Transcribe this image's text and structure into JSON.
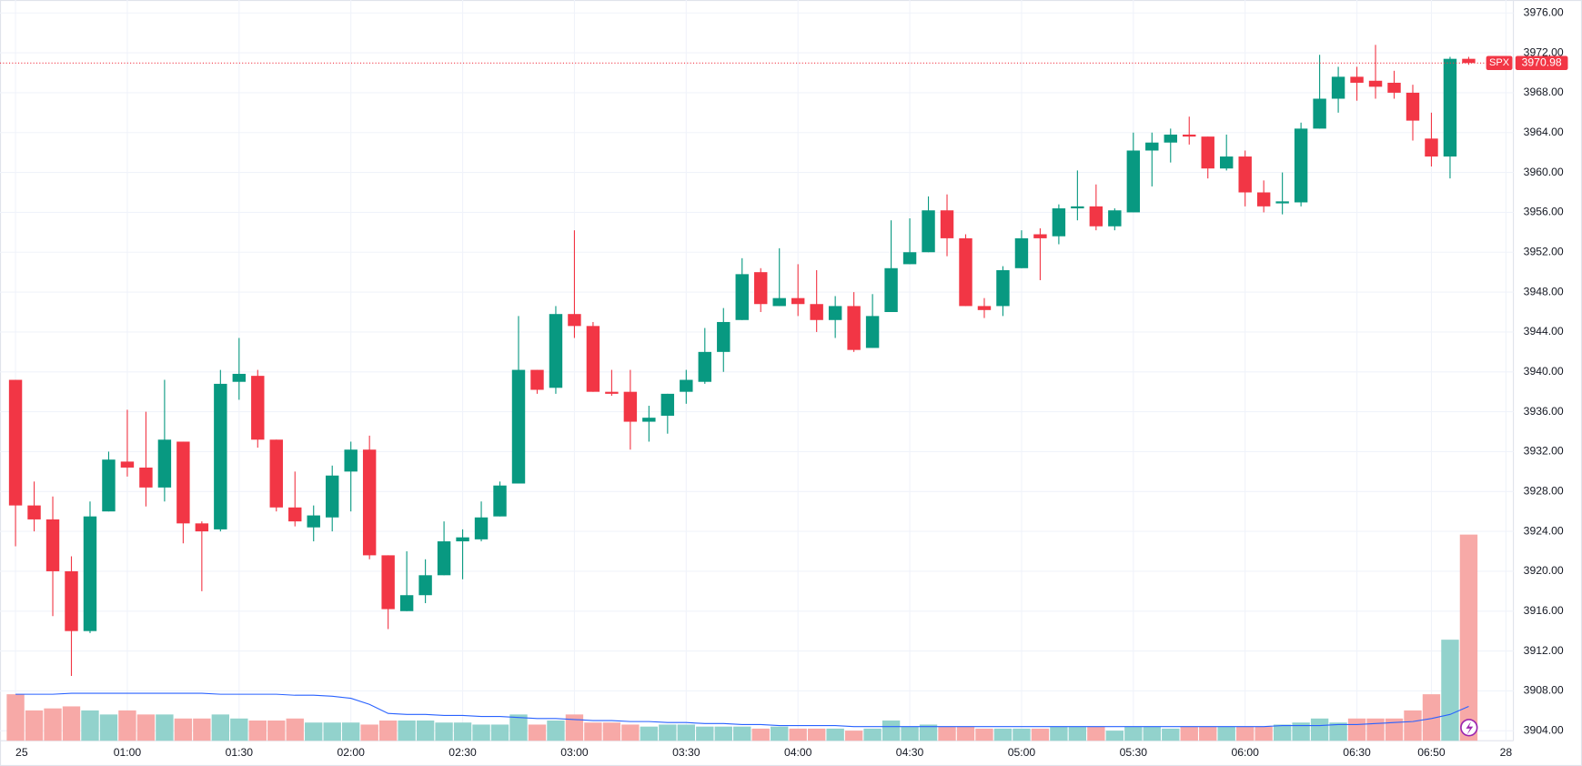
{
  "chart_data": {
    "type": "candlestick",
    "symbol": "SPX",
    "x": [
      "00:30",
      "00:35",
      "00:40",
      "00:45",
      "00:50",
      "00:55",
      "01:00",
      "01:05",
      "01:10",
      "01:15",
      "01:20",
      "01:25",
      "01:30",
      "01:35",
      "01:40",
      "01:45",
      "01:50",
      "01:55",
      "02:00",
      "02:05",
      "02:10",
      "02:15",
      "02:20",
      "02:25",
      "02:30",
      "02:35",
      "02:40",
      "02:45",
      "02:50",
      "02:55",
      "03:00",
      "03:05",
      "03:10",
      "03:15",
      "03:20",
      "03:25",
      "03:30",
      "03:35",
      "03:40",
      "03:45",
      "03:50",
      "03:55",
      "04:00",
      "04:05",
      "04:10",
      "04:15",
      "04:20",
      "04:25",
      "04:30",
      "04:35",
      "04:40",
      "04:45",
      "04:50",
      "04:55",
      "05:00",
      "05:05",
      "05:10",
      "05:15",
      "05:20",
      "05:25",
      "05:30",
      "05:35",
      "05:40",
      "05:45",
      "05:50",
      "05:55",
      "06:00",
      "06:05",
      "06:10",
      "06:15",
      "06:20",
      "06:25",
      "06:30",
      "06:35",
      "06:40",
      "06:45",
      "06:50",
      "06:55",
      "07:00"
    ],
    "open": [
      3939.2,
      3926.6,
      3925.2,
      3920,
      3914,
      3926,
      3931,
      3930.4,
      3928.4,
      3933,
      3924.8,
      3924.2,
      3939,
      3939.6,
      3933.2,
      3926.4,
      3924.4,
      3925.4,
      3930,
      3932.2,
      3921.6,
      3916,
      3917.6,
      3919.6,
      3923,
      3923.2,
      3925.5,
      3928.8,
      3940.2,
      3938.4,
      3945.8,
      3944.6,
      3938,
      3938,
      3935,
      3935.6,
      3938,
      3939,
      3942,
      3945.2,
      3950,
      3946.6,
      3947.4,
      3946.8,
      3945.2,
      3946.6,
      3942.4,
      3946,
      3950.8,
      3952,
      3956.2,
      3953.4,
      3946.6,
      3946.6,
      3950.4,
      3953.8,
      3953.6,
      3956.4,
      3956.6,
      3954.6,
      3956,
      3962.2,
      3963,
      3963.8,
      3963.6,
      3960.4,
      3961.6,
      3958,
      3956.9,
      3957,
      3964.4,
      3967.4,
      3969.6,
      3969.2,
      3969,
      3968,
      3963.4,
      3961.6,
      3971.4
    ],
    "high": [
      3939.2,
      3929,
      3927.5,
      3921.5,
      3927,
      3932,
      3936.2,
      3936,
      3939.2,
      3933,
      3925,
      3940.2,
      3943.4,
      3940.2,
      3933.2,
      3930,
      3926.6,
      3930.6,
      3933,
      3933.6,
      3921.6,
      3922,
      3921.2,
      3925,
      3924.2,
      3927,
      3929,
      3945.6,
      3940.2,
      3946.6,
      3954.2,
      3945,
      3940.2,
      3940.2,
      3936.6,
      3937.8,
      3940.2,
      3944.4,
      3946.4,
      3951.4,
      3950.4,
      3952.4,
      3950.8,
      3950.2,
      3947.6,
      3948,
      3947.8,
      3955.2,
      3955.4,
      3957.6,
      3957.8,
      3953.8,
      3947.4,
      3950.6,
      3954.2,
      3954.4,
      3956.8,
      3960.2,
      3958.8,
      3956.4,
      3964,
      3964,
      3964.4,
      3965.6,
      3963.6,
      3963.8,
      3962.2,
      3959.2,
      3960,
      3965,
      3971.8,
      3970.6,
      3970.6,
      3972.8,
      3970.2,
      3968.8,
      3966,
      3971.6,
      3971.6
    ],
    "low": [
      3922.5,
      3924,
      3915.5,
      3909.5,
      3913.8,
      3926,
      3929.5,
      3926.5,
      3927,
      3922.8,
      3918,
      3924,
      3937.2,
      3932.4,
      3926,
      3924.5,
      3923,
      3924,
      3926,
      3921.2,
      3914.2,
      3916,
      3916.8,
      3919.6,
      3919.2,
      3923,
      3925.5,
      3928.8,
      3937.8,
      3937.8,
      3943.4,
      3938,
      3937.6,
      3932.2,
      3933,
      3933.8,
      3936.8,
      3938.8,
      3940,
      3945.2,
      3946,
      3946.6,
      3945.6,
      3944,
      3943.4,
      3942,
      3942.4,
      3946,
      3950.8,
      3952,
      3951.6,
      3946.6,
      3945.4,
      3945.6,
      3950.4,
      3949.2,
      3952.8,
      3955.2,
      3954.2,
      3954.2,
      3956,
      3958.6,
      3961,
      3962.8,
      3959.4,
      3960.2,
      3956.6,
      3956,
      3955.8,
      3956.6,
      3964.4,
      3966,
      3967.2,
      3967.4,
      3967.4,
      3963.2,
      3960.6,
      3959.4,
      3970.8
    ],
    "close": [
      3926.6,
      3925.2,
      3920,
      3914,
      3925.5,
      3931.2,
      3930.4,
      3928.4,
      3933.2,
      3924.8,
      3924,
      3938.8,
      3939.8,
      3933.2,
      3926.4,
      3925,
      3925.6,
      3929.6,
      3932.2,
      3921.6,
      3916.2,
      3917.6,
      3919.6,
      3923,
      3923.4,
      3925.4,
      3928.6,
      3940.2,
      3938.2,
      3945.8,
      3944.6,
      3938,
      3937.8,
      3935,
      3935.4,
      3937.8,
      3939.2,
      3942,
      3945,
      3949.8,
      3946.8,
      3947.4,
      3946.8,
      3945.2,
      3946.6,
      3942.2,
      3945.6,
      3950.4,
      3952,
      3956.2,
      3953.4,
      3946.6,
      3946.2,
      3950.2,
      3953.4,
      3953.4,
      3956.4,
      3956.6,
      3954.6,
      3956.2,
      3962.2,
      3963,
      3963.8,
      3963.6,
      3960.4,
      3961.6,
      3958,
      3956.6,
      3957.1,
      3964.4,
      3967.4,
      3969.6,
      3969,
      3968.6,
      3968,
      3965.2,
      3961.6,
      3971.4,
      3970.98
    ],
    "volume": [
      46,
      30,
      32,
      34,
      30,
      26,
      30,
      26,
      26,
      22,
      22,
      26,
      22,
      20,
      20,
      22,
      18,
      18,
      18,
      16,
      20,
      20,
      20,
      18,
      18,
      16,
      16,
      26,
      16,
      20,
      26,
      18,
      18,
      16,
      14,
      16,
      16,
      14,
      14,
      14,
      12,
      14,
      12,
      12,
      12,
      10,
      12,
      20,
      14,
      16,
      14,
      14,
      12,
      12,
      12,
      12,
      14,
      14,
      14,
      10,
      14,
      14,
      12,
      14,
      14,
      14,
      14,
      14,
      16,
      18,
      22,
      18,
      22,
      22,
      22,
      30,
      46,
      100,
      204
    ],
    "volume_ma": [
      46,
      46,
      46,
      47,
      47,
      47,
      47,
      47,
      47,
      47,
      47,
      46,
      46,
      46,
      46,
      45,
      45,
      44,
      42,
      36,
      27,
      26,
      26,
      25,
      25,
      24,
      24,
      23,
      22,
      22,
      21,
      20,
      20,
      19,
      19,
      18,
      18,
      17,
      17,
      16,
      16,
      15,
      15,
      15,
      15,
      14,
      14,
      14,
      14,
      14,
      14,
      14,
      14,
      14,
      14,
      14,
      14,
      14,
      14,
      14,
      14,
      14,
      14,
      14,
      14,
      14,
      14,
      14,
      15,
      15,
      15,
      16,
      16,
      17,
      18,
      19,
      22,
      26,
      34
    ],
    "up_color": "#089981",
    "down_color": "#f23645",
    "volume_up_color": "#92d2cc",
    "volume_down_color": "#f7a9a7",
    "ma_color": "#2962ff",
    "last_price": {
      "value": 3970.98,
      "label": "3970.98"
    },
    "xlim": [
      "00:28",
      "07:12"
    ],
    "xticks": [
      {
        "value": "00:30",
        "label": "25"
      },
      "01:00",
      "01:30",
      "02:00",
      "02:30",
      "03:00",
      "03:30",
      "04:00",
      "04:30",
      "05:00",
      "05:30",
      "06:00",
      "06:30",
      "06:50",
      {
        "value": "07:10",
        "label": "28"
      }
    ],
    "ylim": [
      3903,
      3977.3
    ],
    "yticks": [
      {
        "value": 3904,
        "label": "3904.00"
      },
      {
        "value": 3908,
        "label": "3908.00"
      },
      {
        "value": 3912,
        "label": "3912.00"
      },
      {
        "value": 3916,
        "label": "3916.00"
      },
      {
        "value": 3920,
        "label": "3920.00"
      },
      {
        "value": 3924,
        "label": "3924.00"
      },
      {
        "value": 3928,
        "label": "3928.00"
      },
      {
        "value": 3932,
        "label": "3932.00"
      },
      {
        "value": 3936,
        "label": "3936.00"
      },
      {
        "value": 3940,
        "label": "3940.00"
      },
      {
        "value": 3944,
        "label": "3944.00"
      },
      {
        "value": 3948,
        "label": "3948.00"
      },
      {
        "value": 3952,
        "label": "3952.00"
      },
      {
        "value": 3956,
        "label": "3956.00"
      },
      {
        "value": 3960,
        "label": "3960.00"
      },
      {
        "value": 3964,
        "label": "3964.00"
      },
      {
        "value": 3968,
        "label": "3968.00"
      },
      {
        "value": 3972,
        "label": "3972.00"
      },
      {
        "value": 3976,
        "label": "3976.00"
      }
    ],
    "volume_lim": [
      0,
      210
    ],
    "grid": true
  }
}
